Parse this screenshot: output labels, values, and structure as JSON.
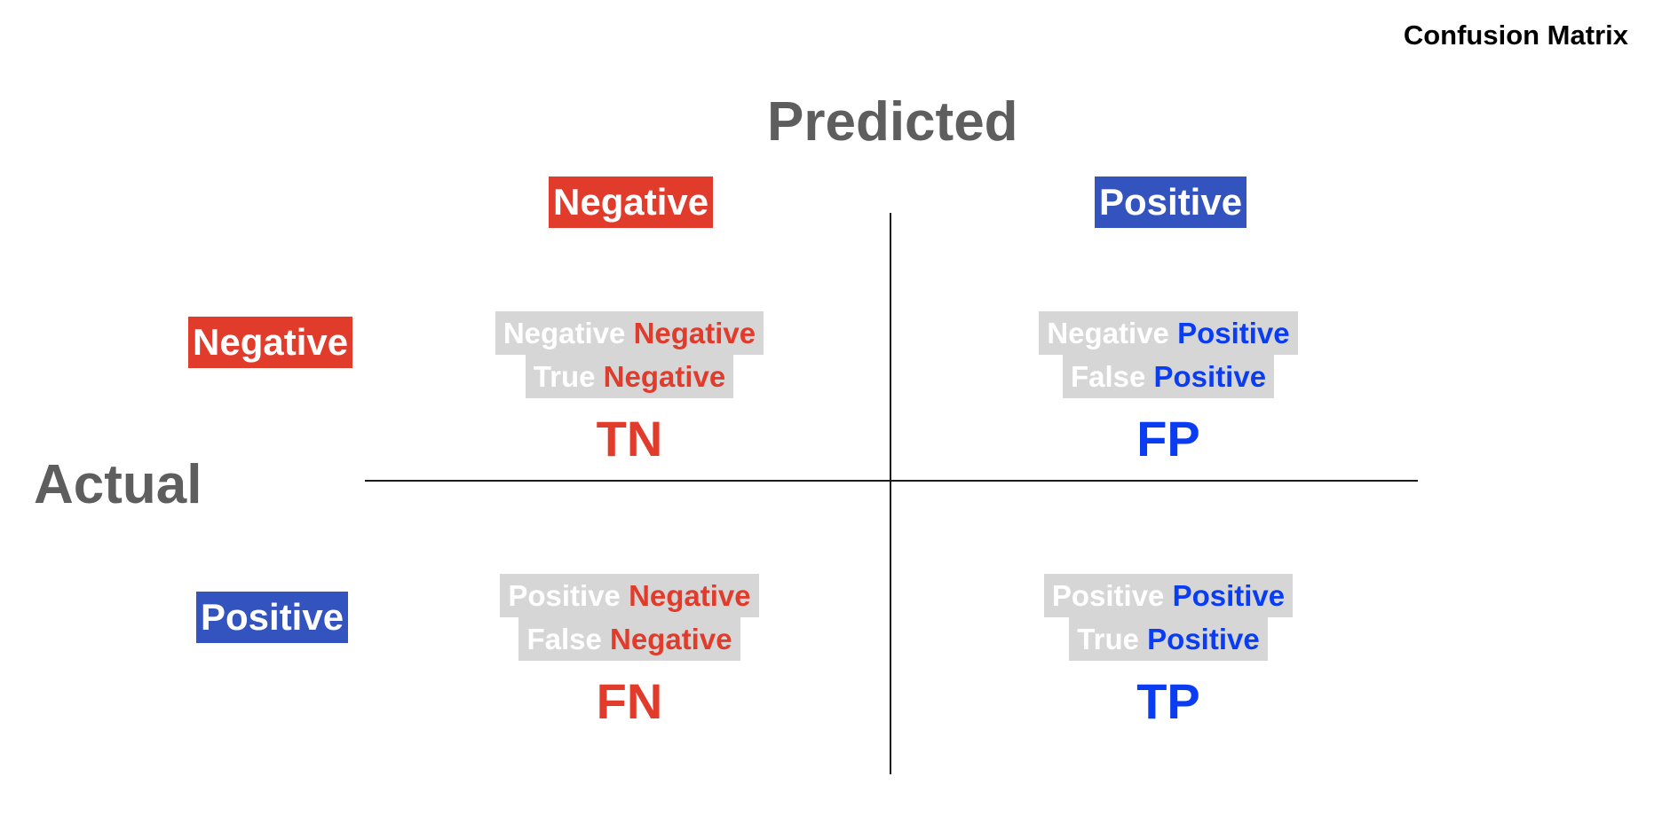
{
  "title": "Confusion Matrix",
  "axes": {
    "predicted": "Predicted",
    "actual": "Actual"
  },
  "predicted_labels": {
    "negative": "Negative",
    "positive": "Positive"
  },
  "actual_labels": {
    "negative": "Negative",
    "positive": "Positive"
  },
  "cells": {
    "tn": {
      "line1_white": "Negative",
      "line1_color": "Negative",
      "line2_white": "True",
      "line2_color": "Negative",
      "code": "TN"
    },
    "fp": {
      "line1_white": "Negative",
      "line1_color": "Positive",
      "line2_white": "False",
      "line2_color": "Positive",
      "code": "FP"
    },
    "fn": {
      "line1_white": "Positive",
      "line1_color": "Negative",
      "line2_white": "False",
      "line2_color": "Negative",
      "code": "FN"
    },
    "tp": {
      "line1_white": "Positive",
      "line1_color": "Positive",
      "line2_white": "True",
      "line2_color": "Positive",
      "code": "TP"
    }
  },
  "colors": {
    "negative": "#e03b2b",
    "positive_badge": "#3353bf",
    "positive_text": "#0a3cf2",
    "cell_box": "#d6d6d6",
    "axis_text": "#5e5e5e"
  }
}
